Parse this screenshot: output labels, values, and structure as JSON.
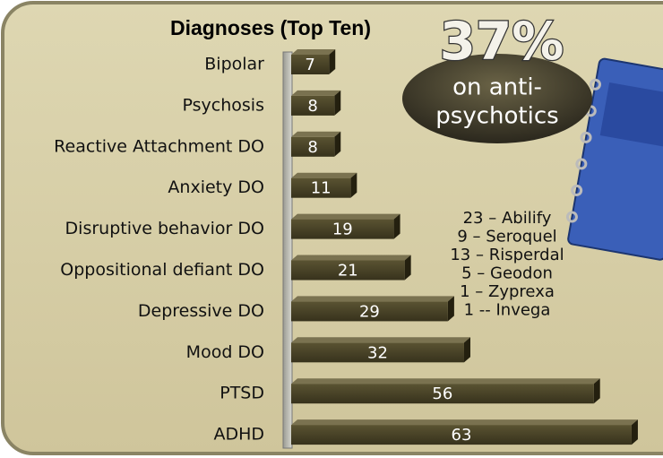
{
  "chart_data": {
    "type": "bar",
    "orientation": "horizontal",
    "title": "Diagnoses (Top Ten)",
    "categories": [
      "Bipolar",
      "Psychosis",
      "Reactive Attachment DO",
      "Anxiety DO",
      "Disruptive behavior DO",
      "Oppositional defiant DO",
      "Depressive DO",
      "Mood DO",
      "PTSD",
      "ADHD"
    ],
    "values": [
      7,
      8,
      8,
      11,
      19,
      21,
      29,
      32,
      56,
      63
    ],
    "color": "#4a4428",
    "xlim": [
      0,
      65
    ],
    "annotations": {
      "percent": "37%",
      "callout": [
        "on anti-",
        "psychotics"
      ],
      "medications": [
        "23 – Abilify",
        "9 – Seroquel",
        "13 – Risperdal",
        "5 – Geodon",
        "1 – Zyprexa",
        "1 -- Invega"
      ]
    }
  }
}
